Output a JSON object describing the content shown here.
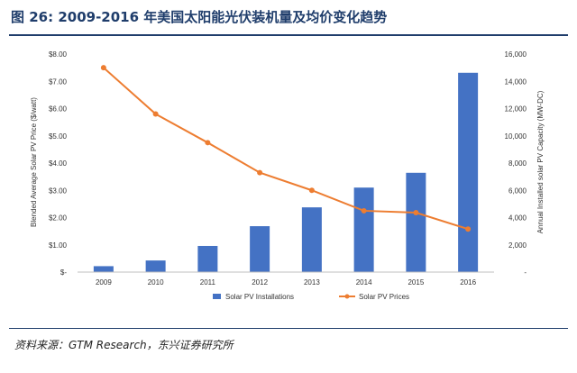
{
  "figure_title": "图 26: 2009-2016 年美国太阳能光伏装机量及均价变化趋势",
  "source": "资料来源：GTM Research，东兴证券研究所",
  "chart_data": {
    "type": "bar",
    "categories": [
      "2009",
      "2010",
      "2011",
      "2012",
      "2013",
      "2014",
      "2015",
      "2016"
    ],
    "series": [
      {
        "name": "Solar PV Installations",
        "type": "bar",
        "axis": "right",
        "color": "#4472c4",
        "values": [
          435,
          852,
          1919,
          3369,
          4751,
          6201,
          7286,
          14626
        ]
      },
      {
        "name": "Solar PV Prices",
        "type": "line",
        "axis": "left",
        "color": "#ed7d31",
        "values": [
          7.5,
          5.8,
          4.75,
          3.65,
          3.0,
          2.25,
          2.18,
          1.58
        ]
      }
    ],
    "ylabel_left": "Blended Average Solar PV Price ($/watt)",
    "ylabel_right": "Annual Installed solar PV Capacity (MW-DC)",
    "ylim_left": [
      0,
      8
    ],
    "ylim_right": [
      0,
      16000
    ],
    "yticks_left": [
      "$-",
      "$1.00",
      "$2.00",
      "$3.00",
      "$4.00",
      "$5.00",
      "$6.00",
      "$7.00",
      "$8.00"
    ],
    "yticks_right": [
      "-",
      "2,000",
      "4,000",
      "6,000",
      "8,000",
      "10,000",
      "12,000",
      "14,000",
      "16,000"
    ],
    "legend_position": "bottom",
    "grid": false
  }
}
